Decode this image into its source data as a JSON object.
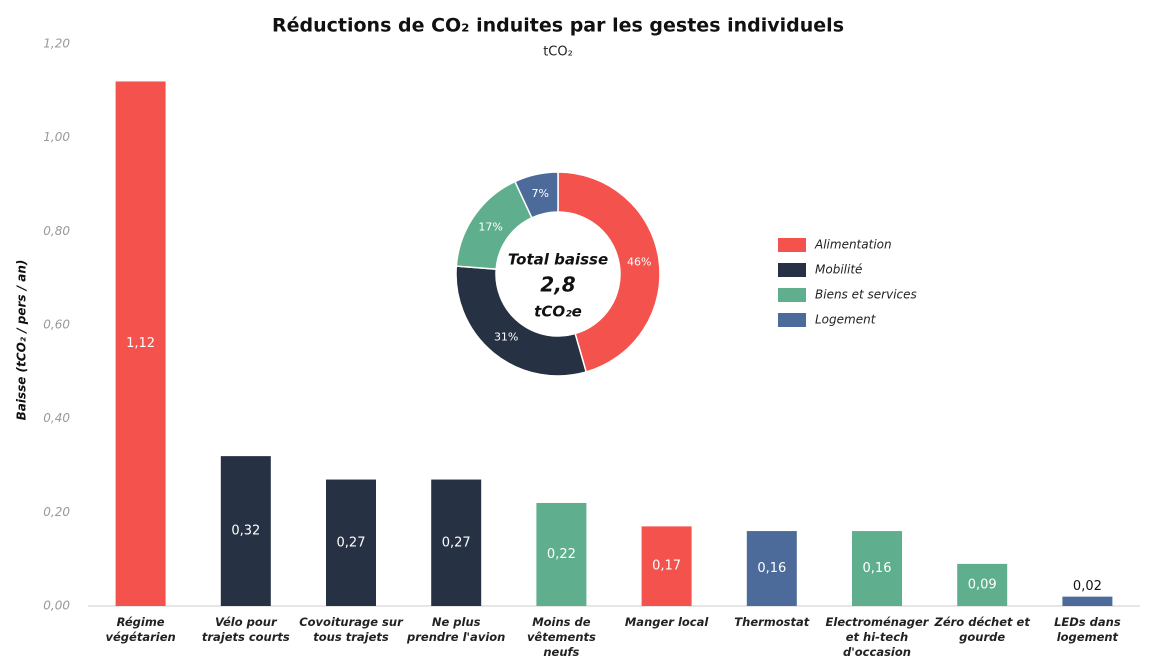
{
  "chart_data": [
    {
      "type": "bar",
      "title": "Réductions de CO₂ induites par les gestes individuels",
      "subtitle": "tCO₂",
      "y_label": "Baisse (tCO₂ / pers / an)",
      "categories": [
        "Régime végétarien",
        "Vélo pour trajets courts",
        "Covoiturage sur tous trajets",
        "Ne plus prendre l'avion",
        "Moins de vêtements neufs",
        "Manger local",
        "Thermostat",
        "Electroménager et hi-tech d'occasion",
        "Zéro déchet et gourde",
        "LEDs dans logement"
      ],
      "values": [
        1.12,
        0.32,
        0.27,
        0.27,
        0.22,
        0.17,
        0.16,
        0.16,
        0.09,
        0.02
      ],
      "value_labels": [
        "1,12",
        "0,32",
        "0,27",
        "0,27",
        "0,22",
        "0,17",
        "0,16",
        "0,16",
        "0,09",
        "0,02"
      ],
      "colors": [
        "#f4524d",
        "#263143",
        "#263143",
        "#263143",
        "#5fae8d",
        "#f4524d",
        "#4d6b9a",
        "#5fae8d",
        "#5fae8d",
        "#4d6b9a"
      ],
      "ylim": [
        0,
        1.2
      ],
      "yticks": [
        {
          "value": 0,
          "label": "0,00"
        },
        {
          "value": 0.2,
          "label": "0,20"
        },
        {
          "value": 0.4,
          "label": "0,40"
        },
        {
          "value": 0.6,
          "label": "0,60"
        },
        {
          "value": 0.8,
          "label": "0,80"
        },
        {
          "value": 1.0,
          "label": "1,00"
        },
        {
          "value": 1.2,
          "label": "1,20"
        }
      ]
    },
    {
      "type": "donut",
      "center_lines": [
        "Total baisse",
        "2,8",
        "tCO₂e"
      ],
      "categories": [
        "Alimentation",
        "Mobilité",
        "Biens et services",
        "Logement"
      ],
      "values": [
        46,
        31,
        17,
        7
      ],
      "value_labels": [
        "46%",
        "31%",
        "17%",
        "7%"
      ],
      "colors": [
        "#f4524d",
        "#263143",
        "#5fae8d",
        "#4d6b9a"
      ],
      "legend": "right"
    }
  ]
}
